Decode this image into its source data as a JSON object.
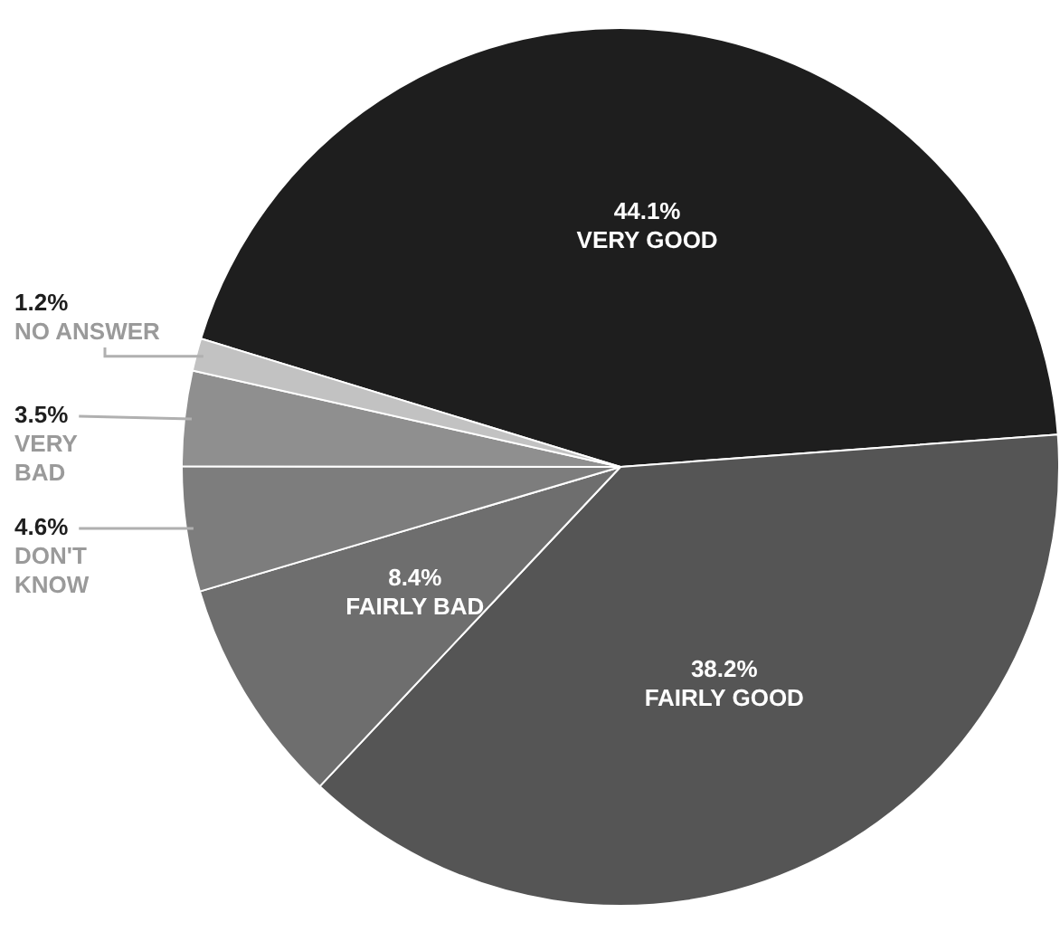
{
  "chart_data": {
    "type": "pie",
    "categories": [
      "VERY GOOD",
      "FAIRLY GOOD",
      "FAIRLY BAD",
      "DON'T KNOW",
      "VERY BAD",
      "NO ANSWER"
    ],
    "values": [
      44.1,
      38.2,
      8.4,
      4.6,
      3.5,
      1.2
    ],
    "colors": [
      "#1e1e1e",
      "#555555",
      "#6e6e6e",
      "#7d7d7d",
      "#8f8f8f",
      "#c2c2c2"
    ],
    "value_labels": [
      "44.1%",
      "38.2%",
      "8.4%",
      "4.6%",
      "3.5%",
      "1.2%"
    ],
    "legend": false
  }
}
